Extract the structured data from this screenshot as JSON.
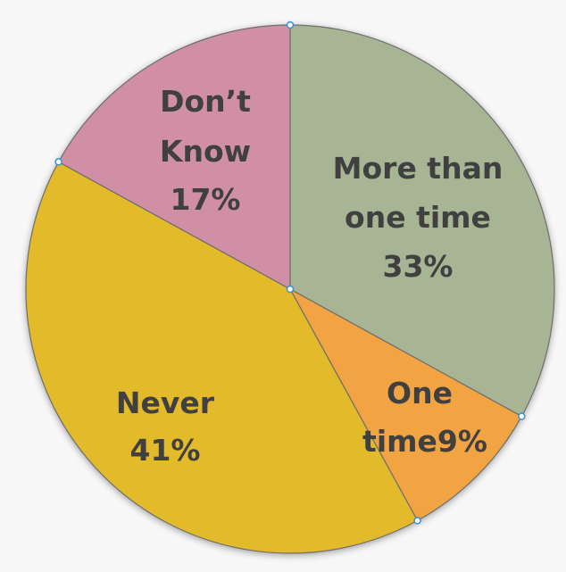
{
  "chart_data": {
    "type": "pie",
    "start_angle_deg": 0,
    "direction": "clockwise",
    "slices": [
      {
        "label_lines": [
          "More than",
          "one time",
          "33%"
        ],
        "value": 33,
        "color": "#a7b595"
      },
      {
        "label_lines": [
          "One",
          "time9%"
        ],
        "value": 9,
        "color": "#f2a343"
      },
      {
        "label_lines": [
          "Never",
          "41%"
        ],
        "value": 41,
        "color": "#e3ba2b"
      },
      {
        "label_lines": [
          "Don’t",
          "Know",
          "17%"
        ],
        "value": 17,
        "color": "#d18fa6"
      }
    ]
  }
}
